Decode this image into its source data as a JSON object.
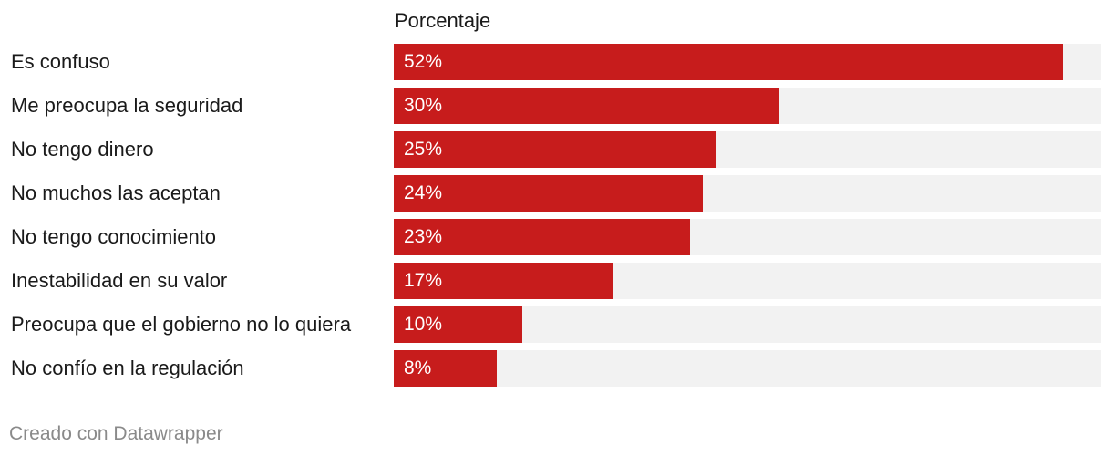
{
  "chart_data": {
    "type": "bar",
    "orientation": "horizontal",
    "column_header": "Porcentaje",
    "categories": [
      "Es confuso",
      "Me preocupa la seguridad",
      "No tengo dinero",
      "No muchos las aceptan",
      "No tengo conocimiento",
      "Inestabilidad en su valor",
      "Preocupa que el gobierno no lo quiera",
      "No confío en la regulación"
    ],
    "values": [
      52,
      30,
      25,
      24,
      23,
      17,
      10,
      8
    ],
    "value_labels": [
      "52%",
      "30%",
      "25%",
      "24%",
      "23%",
      "17%",
      "10%",
      "8%"
    ],
    "xlim": [
      0,
      55
    ],
    "colors": {
      "bar": "#c71c1c",
      "track": "#f2f2f2",
      "value_text": "#ffffff"
    }
  },
  "footer": {
    "credit": "Creado con Datawrapper"
  }
}
